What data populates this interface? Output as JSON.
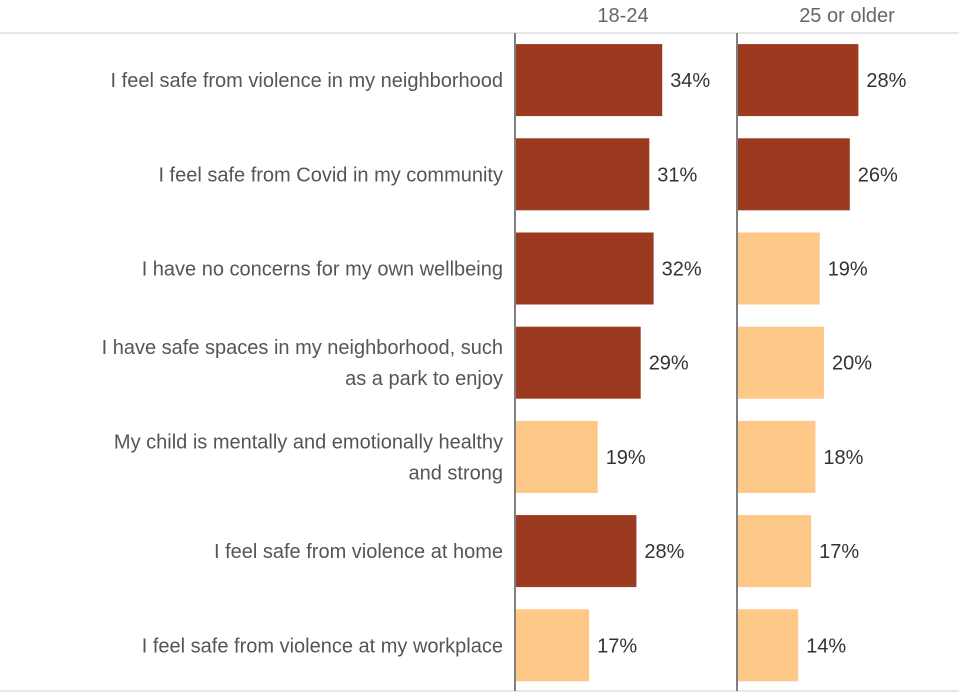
{
  "chart_data": {
    "type": "bar",
    "orientation": "horizontal",
    "categories": [
      [
        "I feel safe from violence in my neighborhood"
      ],
      [
        "I feel safe from Covid in my community"
      ],
      [
        "I have no concerns for my own wellbeing"
      ],
      [
        "I have safe spaces in my neighborhood, such",
        "as a park to enjoy"
      ],
      [
        "My child is mentally and emotionally healthy",
        "and strong"
      ],
      [
        "I feel safe from violence at home"
      ],
      [
        "I feel safe from violence at my workplace"
      ]
    ],
    "series": [
      {
        "name": "18-24",
        "values": [
          34,
          31,
          32,
          29,
          19,
          28,
          17
        ],
        "labels": [
          "34%",
          "31%",
          "32%",
          "29%",
          "19%",
          "28%",
          "17%"
        ],
        "highlight": [
          true,
          true,
          true,
          true,
          false,
          true,
          false
        ]
      },
      {
        "name": "25 or older",
        "values": [
          28,
          26,
          19,
          20,
          18,
          17,
          14
        ],
        "labels": [
          "28%",
          "26%",
          "19%",
          "20%",
          "18%",
          "17%",
          "14%"
        ],
        "highlight": [
          true,
          true,
          false,
          false,
          false,
          false,
          false
        ]
      }
    ],
    "unit": "%",
    "xlim": [
      0,
      40
    ],
    "colors": {
      "highlight": "#9B3A1F",
      "normal": "#FDC888"
    }
  }
}
